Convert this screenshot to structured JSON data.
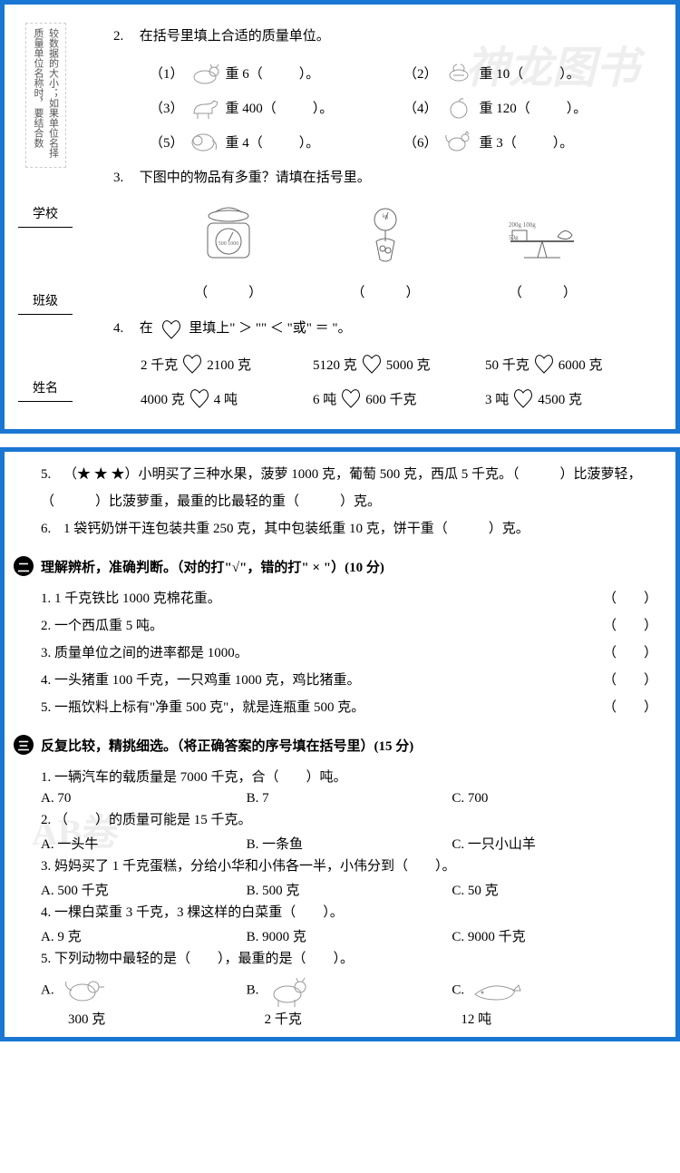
{
  "sidebar": {
    "note": "较数据的大小；如果单位名择质量单位名称时，要结合数",
    "labels": [
      "学校",
      "班级",
      "姓名"
    ]
  },
  "p1": {
    "q2": {
      "num": "2.",
      "stem": "在括号里填上合适的质量单位。",
      "items": [
        {
          "label": "（1）",
          "text": "重 6（",
          "end": "）。"
        },
        {
          "label": "（2）",
          "text": "重 10（",
          "end": "）。"
        },
        {
          "label": "（3）",
          "text": "重 400（",
          "end": "）。"
        },
        {
          "label": "（4）",
          "text": "重 120（",
          "end": "）。"
        },
        {
          "label": "（5）",
          "text": "重 4（",
          "end": "）。"
        },
        {
          "label": "（6）",
          "text": "重 3（",
          "end": "）。"
        }
      ]
    },
    "q3": {
      "num": "3.",
      "stem": "下图中的物品有多重？请填在括号里。",
      "paren": "（　　　）"
    },
    "q4": {
      "num": "4.",
      "stem_a": "在",
      "stem_b": "里填上\" ＞ \"\" ＜ \"或\" ＝ \"。",
      "rows": [
        [
          {
            "l": "2 千克",
            "r": "2100 克"
          },
          {
            "l": "5120 克",
            "r": "5000 克"
          },
          {
            "l": "50 千克",
            "r": "6000 克"
          }
        ],
        [
          {
            "l": "4000 克",
            "r": "4 吨"
          },
          {
            "l": "6 吨",
            "r": "600 千克"
          },
          {
            "l": "3 吨",
            "r": "4500 克"
          }
        ]
      ]
    }
  },
  "p2": {
    "q5": {
      "num": "5.",
      "text": "（★ ★ ★）小明买了三种水果，菠萝 1000 克，葡萄 500 克，西瓜 5 千克。（　　　）比菠萝轻，（　　　）比菠萝重，最重的比最轻的重（　　　）克。"
    },
    "q6": {
      "num": "6.",
      "text": "1 袋钙奶饼干连包装共重 250 克，其中包装纸重 10 克，饼干重（　　　）克。"
    },
    "sec2": {
      "num": "二",
      "title": "理解辨析，准确判断。（对的打\"√\"，错的打\" × \"）(10 分)",
      "items": [
        "1 千克铁比 1000 克棉花重。",
        "一个西瓜重 5 吨。",
        "质量单位之间的进率都是 1000。",
        "一头猪重 100 千克，一只鸡重 1000 克，鸡比猪重。",
        "一瓶饮料上标有\"净重 500 克\"，就是连瓶重 500 克。"
      ],
      "paren": "（　　）"
    },
    "sec3": {
      "num": "三",
      "title": "反复比较，精挑细选。（将正确答案的序号填在括号里）(15 分)",
      "q1": {
        "stem": "一辆汽车的载质量是 7000 千克，合（　　）吨。",
        "a": "A. 70",
        "b": "B. 7",
        "c": "C. 700"
      },
      "q2": {
        "stem": "（　　）的质量可能是 15 千克。",
        "a": "A. 一头牛",
        "b": "B. 一条鱼",
        "c": "C. 一只小山羊"
      },
      "q3": {
        "stem": "妈妈买了 1 千克蛋糕，分给小华和小伟各一半，小伟分到（　　）。",
        "a": "A. 500 千克",
        "b": "B. 500 克",
        "c": "C. 50 克"
      },
      "q4": {
        "stem": "一棵白菜重 3 千克，3 棵这样的白菜重（　　）。",
        "a": "A. 9 克",
        "b": "B. 9000 克",
        "c": "C. 9000 千克"
      },
      "q5": {
        "stem": "下列动物中最轻的是（　　），最重的是（　　）。",
        "a": "A.",
        "b": "B.",
        "c": "C.",
        "wa": "300 克",
        "wb": "2 千克",
        "wc": "12 吨"
      }
    }
  }
}
